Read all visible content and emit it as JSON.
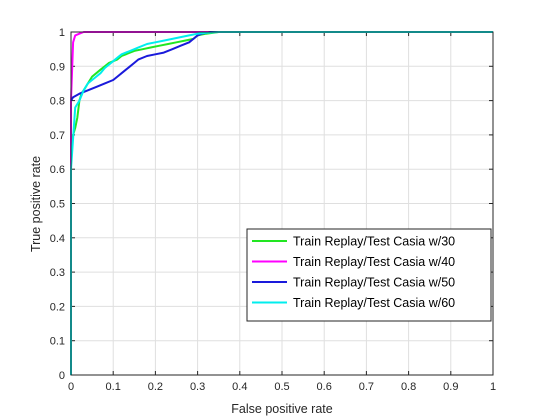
{
  "chart_data": {
    "type": "line",
    "title": "",
    "xlabel": "False positive rate",
    "ylabel": "True positive rate",
    "xlim": [
      0,
      1
    ],
    "ylim": [
      0,
      1
    ],
    "xticks": [
      "0",
      "0.1",
      "0.2",
      "0.3",
      "0.4",
      "0.5",
      "0.6",
      "0.7",
      "0.8",
      "0.9",
      "1"
    ],
    "yticks": [
      "0",
      "0.1",
      "0.2",
      "0.3",
      "0.4",
      "0.5",
      "0.6",
      "0.7",
      "0.8",
      "0.9",
      "1"
    ],
    "grid": true,
    "legend_position": "lower-right",
    "series": [
      {
        "name": "Train Replay/Test Casia w/30",
        "color": "#22e622",
        "x": [
          0,
          0.005,
          0.01,
          0.015,
          0.02,
          0.025,
          0.03,
          0.04,
          0.05,
          0.06,
          0.07,
          0.08,
          0.09,
          0.1,
          0.11,
          0.12,
          0.13,
          0.14,
          0.15,
          0.17,
          0.19,
          0.21,
          0.23,
          0.25,
          0.27,
          0.29,
          0.3,
          0.32,
          0.35,
          1
        ],
        "y": [
          0.68,
          0.7,
          0.72,
          0.75,
          0.8,
          0.82,
          0.83,
          0.85,
          0.87,
          0.88,
          0.89,
          0.9,
          0.91,
          0.915,
          0.92,
          0.93,
          0.935,
          0.94,
          0.945,
          0.95,
          0.955,
          0.96,
          0.965,
          0.97,
          0.975,
          0.98,
          0.99,
          0.995,
          1,
          1
        ]
      },
      {
        "name": "Train Replay/Test Casia w/40",
        "color": "#ff00ff",
        "x": [
          0,
          0,
          0.005,
          0.01,
          0.02,
          0.03,
          1
        ],
        "y": [
          0,
          0.8,
          0.97,
          0.99,
          0.995,
          1,
          1
        ]
      },
      {
        "name": "Train Replay/Test Casia w/50",
        "color": "#1a1adb",
        "x": [
          0,
          0.005,
          0.02,
          0.04,
          0.06,
          0.08,
          0.1,
          0.11,
          0.12,
          0.13,
          0.14,
          0.15,
          0.16,
          0.18,
          0.2,
          0.22,
          0.24,
          0.26,
          0.28,
          0.29,
          0.3,
          0.31,
          0.33,
          1
        ],
        "y": [
          0.8,
          0.81,
          0.82,
          0.83,
          0.84,
          0.85,
          0.86,
          0.87,
          0.88,
          0.89,
          0.9,
          0.91,
          0.92,
          0.93,
          0.935,
          0.94,
          0.95,
          0.96,
          0.97,
          0.98,
          0.99,
          0.995,
          1,
          1
        ]
      },
      {
        "name": "Train Replay/Test Casia w/60",
        "color": "#00eeee",
        "x": [
          0,
          0,
          0.01,
          0.02,
          0.03,
          0.04,
          0.05,
          0.06,
          0.07,
          0.08,
          0.09,
          0.1,
          0.11,
          0.12,
          0.13,
          0.14,
          0.16,
          0.18,
          0.2,
          0.22,
          0.24,
          0.26,
          0.28,
          0.3,
          0.32,
          0.35,
          1
        ],
        "y": [
          0,
          0.6,
          0.78,
          0.8,
          0.83,
          0.85,
          0.86,
          0.87,
          0.88,
          0.895,
          0.905,
          0.915,
          0.925,
          0.935,
          0.94,
          0.945,
          0.955,
          0.965,
          0.97,
          0.975,
          0.98,
          0.985,
          0.99,
          0.995,
          0.998,
          1,
          1
        ]
      }
    ]
  }
}
